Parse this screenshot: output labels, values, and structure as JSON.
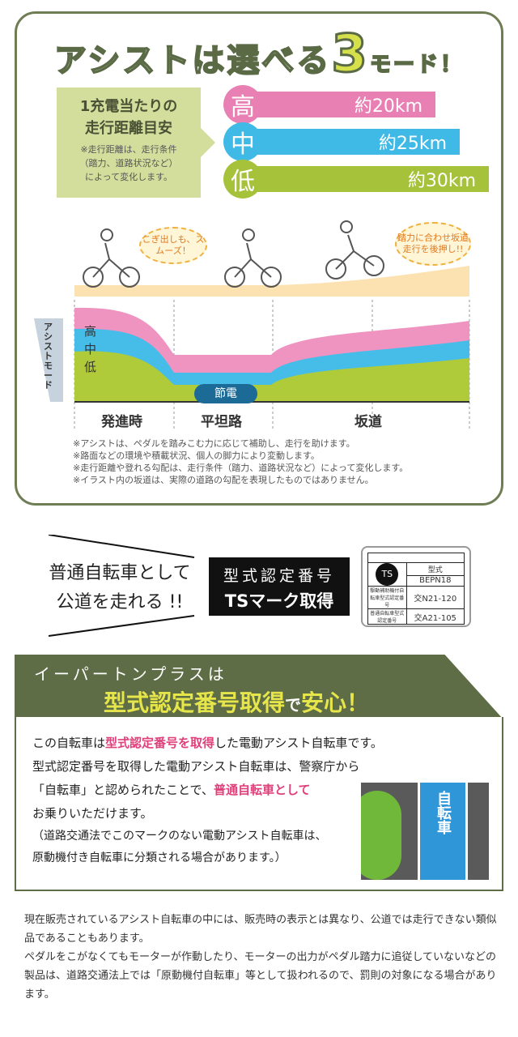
{
  "title": {
    "part1": "アシストは選べる",
    "number": "3",
    "part2": "モード！"
  },
  "range": {
    "heading1": "1充電当たりの",
    "heading2": "走行距離目安",
    "note1": "※走行距離は、走行条件",
    "note2": "（踏力、道路状況など）",
    "note3": "によって変化します。",
    "modes": [
      {
        "label": "高",
        "distance": "約20km",
        "color": "#e880b4"
      },
      {
        "label": "中",
        "distance": "約25km",
        "color": "#3fb9e6"
      },
      {
        "label": "低",
        "distance": "約30km",
        "color": "#a5c23a"
      }
    ]
  },
  "illustration": {
    "bubble_start": "こぎ出しも、スムーズ！",
    "bubble_slope": "踏力に合わせ坂道走行を後押し!!"
  },
  "assist_chart": {
    "axis_label": "アシストモード",
    "levels": [
      "高",
      "中",
      "低"
    ],
    "power_saving": "節電",
    "sections": [
      "発進時",
      "平坦路",
      "坂道"
    ]
  },
  "notes": [
    "※アシストは、ペダルを踏みこむ力に応じて補助し、走行を助けます。",
    "※路面などの環境や積載状況、個人の脚力により変動します。",
    "※走行距離や登れる勾配は、走行条件（踏力、道路状況など）によって変化します。",
    "※イラスト内の坂道は、実際の道路の勾配を表現したものではありません。"
  ],
  "ts": {
    "left1": "普通自転車として",
    "left2": "公道を走れる !!",
    "badge1": "型式認定番号",
    "badge2": "TSマーク取得",
    "plate": {
      "type_label": "型式",
      "model": "BEPN18",
      "row1_label": "駆動補助機付自転車型式認定番号",
      "row1_value": "交N21-120",
      "row2_label": "普通自転車型式認定番号",
      "row2_value": "交A21-105"
    }
  },
  "band": {
    "line1": "イーパートンプラスは",
    "line2a": "型式認定番号取得",
    "line2b": "で",
    "line2c": "安心！"
  },
  "box": {
    "p1a": "この自転車は",
    "p1b": "型式認定番号を取得",
    "p1c": "した電動アシスト自転車です。",
    "p2": "型式認定番号を取得した電動アシスト自転車は、警察庁から",
    "p3a": "「自転車」と認められたことで、",
    "p3b": "普通自転車として",
    "p4": "お乗りいただけます。",
    "p5": "（道路交通法でこのマークのない電動アシスト自転車は、",
    "p6": "原動機付き自転車に分類される場合があります。）",
    "sign": "自転車"
  },
  "bottom": {
    "p1": "現在販売されているアシスト自転車の中には、販売時の表示とは異なり、公道では走行できない類似品であることもあります。",
    "p2": "ペダルをこがなくてもモーターが作動したり、モーターの出力がペダル踏力に追従していないなどの製品は、道路交通法上では「原動機付自転車」等として扱われるので、罰則の対象になる場合があります。"
  }
}
